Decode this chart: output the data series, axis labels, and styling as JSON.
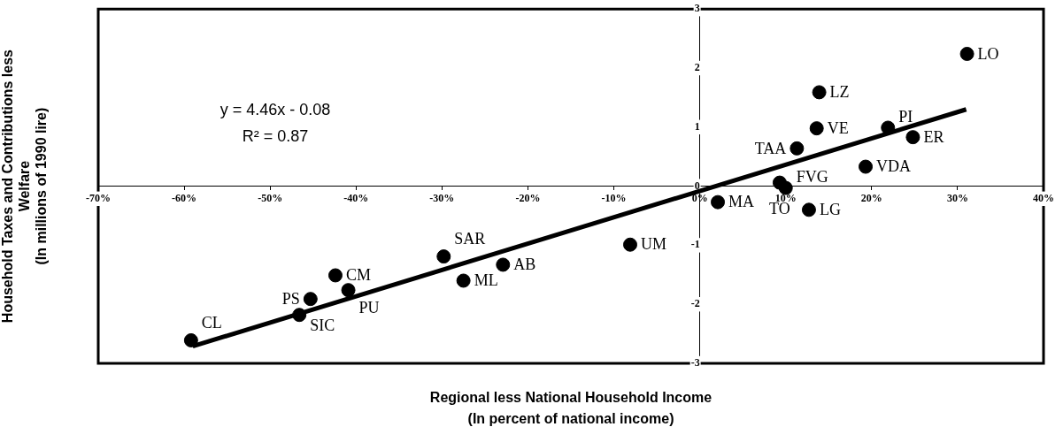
{
  "chart_data": {
    "type": "scatter",
    "xlabel": "Regional less National Household Income\n(In percent of national income)",
    "ylabel": "Household Taxes and Contributions less\nWelfare\n(In millions of 1990 lire)",
    "xlim": [
      -70,
      40
    ],
    "xticks": [
      {
        "value": -70,
        "label": "-70%"
      },
      {
        "value": -60,
        "label": "-60%"
      },
      {
        "value": -50,
        "label": "-50%"
      },
      {
        "value": -40,
        "label": "-40%"
      },
      {
        "value": -30,
        "label": "-30%"
      },
      {
        "value": -20,
        "label": "-20%"
      },
      {
        "value": -10,
        "label": "-10%"
      },
      {
        "value": 0,
        "label": "0%"
      },
      {
        "value": 10,
        "label": "10%"
      },
      {
        "value": 20,
        "label": "20%"
      },
      {
        "value": 30,
        "label": "30%"
      },
      {
        "value": 40,
        "label": "40%"
      }
    ],
    "ylim": [
      -3,
      3
    ],
    "yticks": [
      -3,
      -2,
      -1,
      0,
      1,
      2,
      3
    ],
    "grid": false,
    "legend": false,
    "marker": "circle",
    "series": [
      {
        "color": "#000000",
        "x": [
          -59.2,
          -46.6,
          -45.3,
          -42.4,
          -40.9,
          -29.8,
          -27.5,
          -22.9,
          -8.1,
          2.1,
          9.3,
          10.0,
          12.7,
          11.3,
          13.6,
          13.9,
          19.3,
          21.9,
          24.8,
          31.1
        ],
        "values": [
          -2.61,
          -2.18,
          -1.91,
          -1.51,
          -1.76,
          -1.19,
          -1.6,
          -1.33,
          -0.99,
          -0.27,
          0.06,
          -0.03,
          -0.4,
          0.64,
          0.98,
          1.59,
          0.33,
          0.99,
          0.83,
          2.24
        ]
      },
      {
        "type": "line",
        "color": "#000000",
        "marker": "none",
        "x": [
          -59,
          31
        ],
        "values": [
          -2.71,
          1.3
        ]
      }
    ],
    "annotations": [
      "y = 4.46x - 0.08",
      "R² = 0.87",
      {
        "text": "CL",
        "x": -59.2,
        "y": -2.61
      },
      {
        "text": "SIC",
        "x": -46.6,
        "y": -2.18
      },
      {
        "text": "PS",
        "x": -45.3,
        "y": -1.91
      },
      {
        "text": "CM",
        "x": -42.4,
        "y": -1.51
      },
      {
        "text": "PU",
        "x": -40.9,
        "y": -1.76
      },
      {
        "text": "SAR",
        "x": -29.8,
        "y": -1.19
      },
      {
        "text": "ML",
        "x": -27.5,
        "y": -1.6
      },
      {
        "text": "AB",
        "x": -22.9,
        "y": -1.33
      },
      {
        "text": "UM",
        "x": -8.1,
        "y": -0.99
      },
      {
        "text": "MA",
        "x": 2.1,
        "y": -0.27
      },
      {
        "text": "TO",
        "x": 9.3,
        "y": 0.06
      },
      {
        "text": "FVG",
        "x": 10.0,
        "y": -0.03
      },
      {
        "text": "LG",
        "x": 12.7,
        "y": -0.4
      },
      {
        "text": "TAA",
        "x": 11.3,
        "y": 0.64
      },
      {
        "text": "VE",
        "x": 13.6,
        "y": 0.98
      },
      {
        "text": "LZ",
        "x": 13.9,
        "y": 1.59
      },
      {
        "text": "VDA",
        "x": 19.3,
        "y": 0.33
      },
      {
        "text": "PI",
        "x": 21.9,
        "y": 0.99
      },
      {
        "text": "ER",
        "x": 24.8,
        "y": 0.83
      },
      {
        "text": "LO",
        "x": 31.1,
        "y": 2.24
      }
    ]
  }
}
